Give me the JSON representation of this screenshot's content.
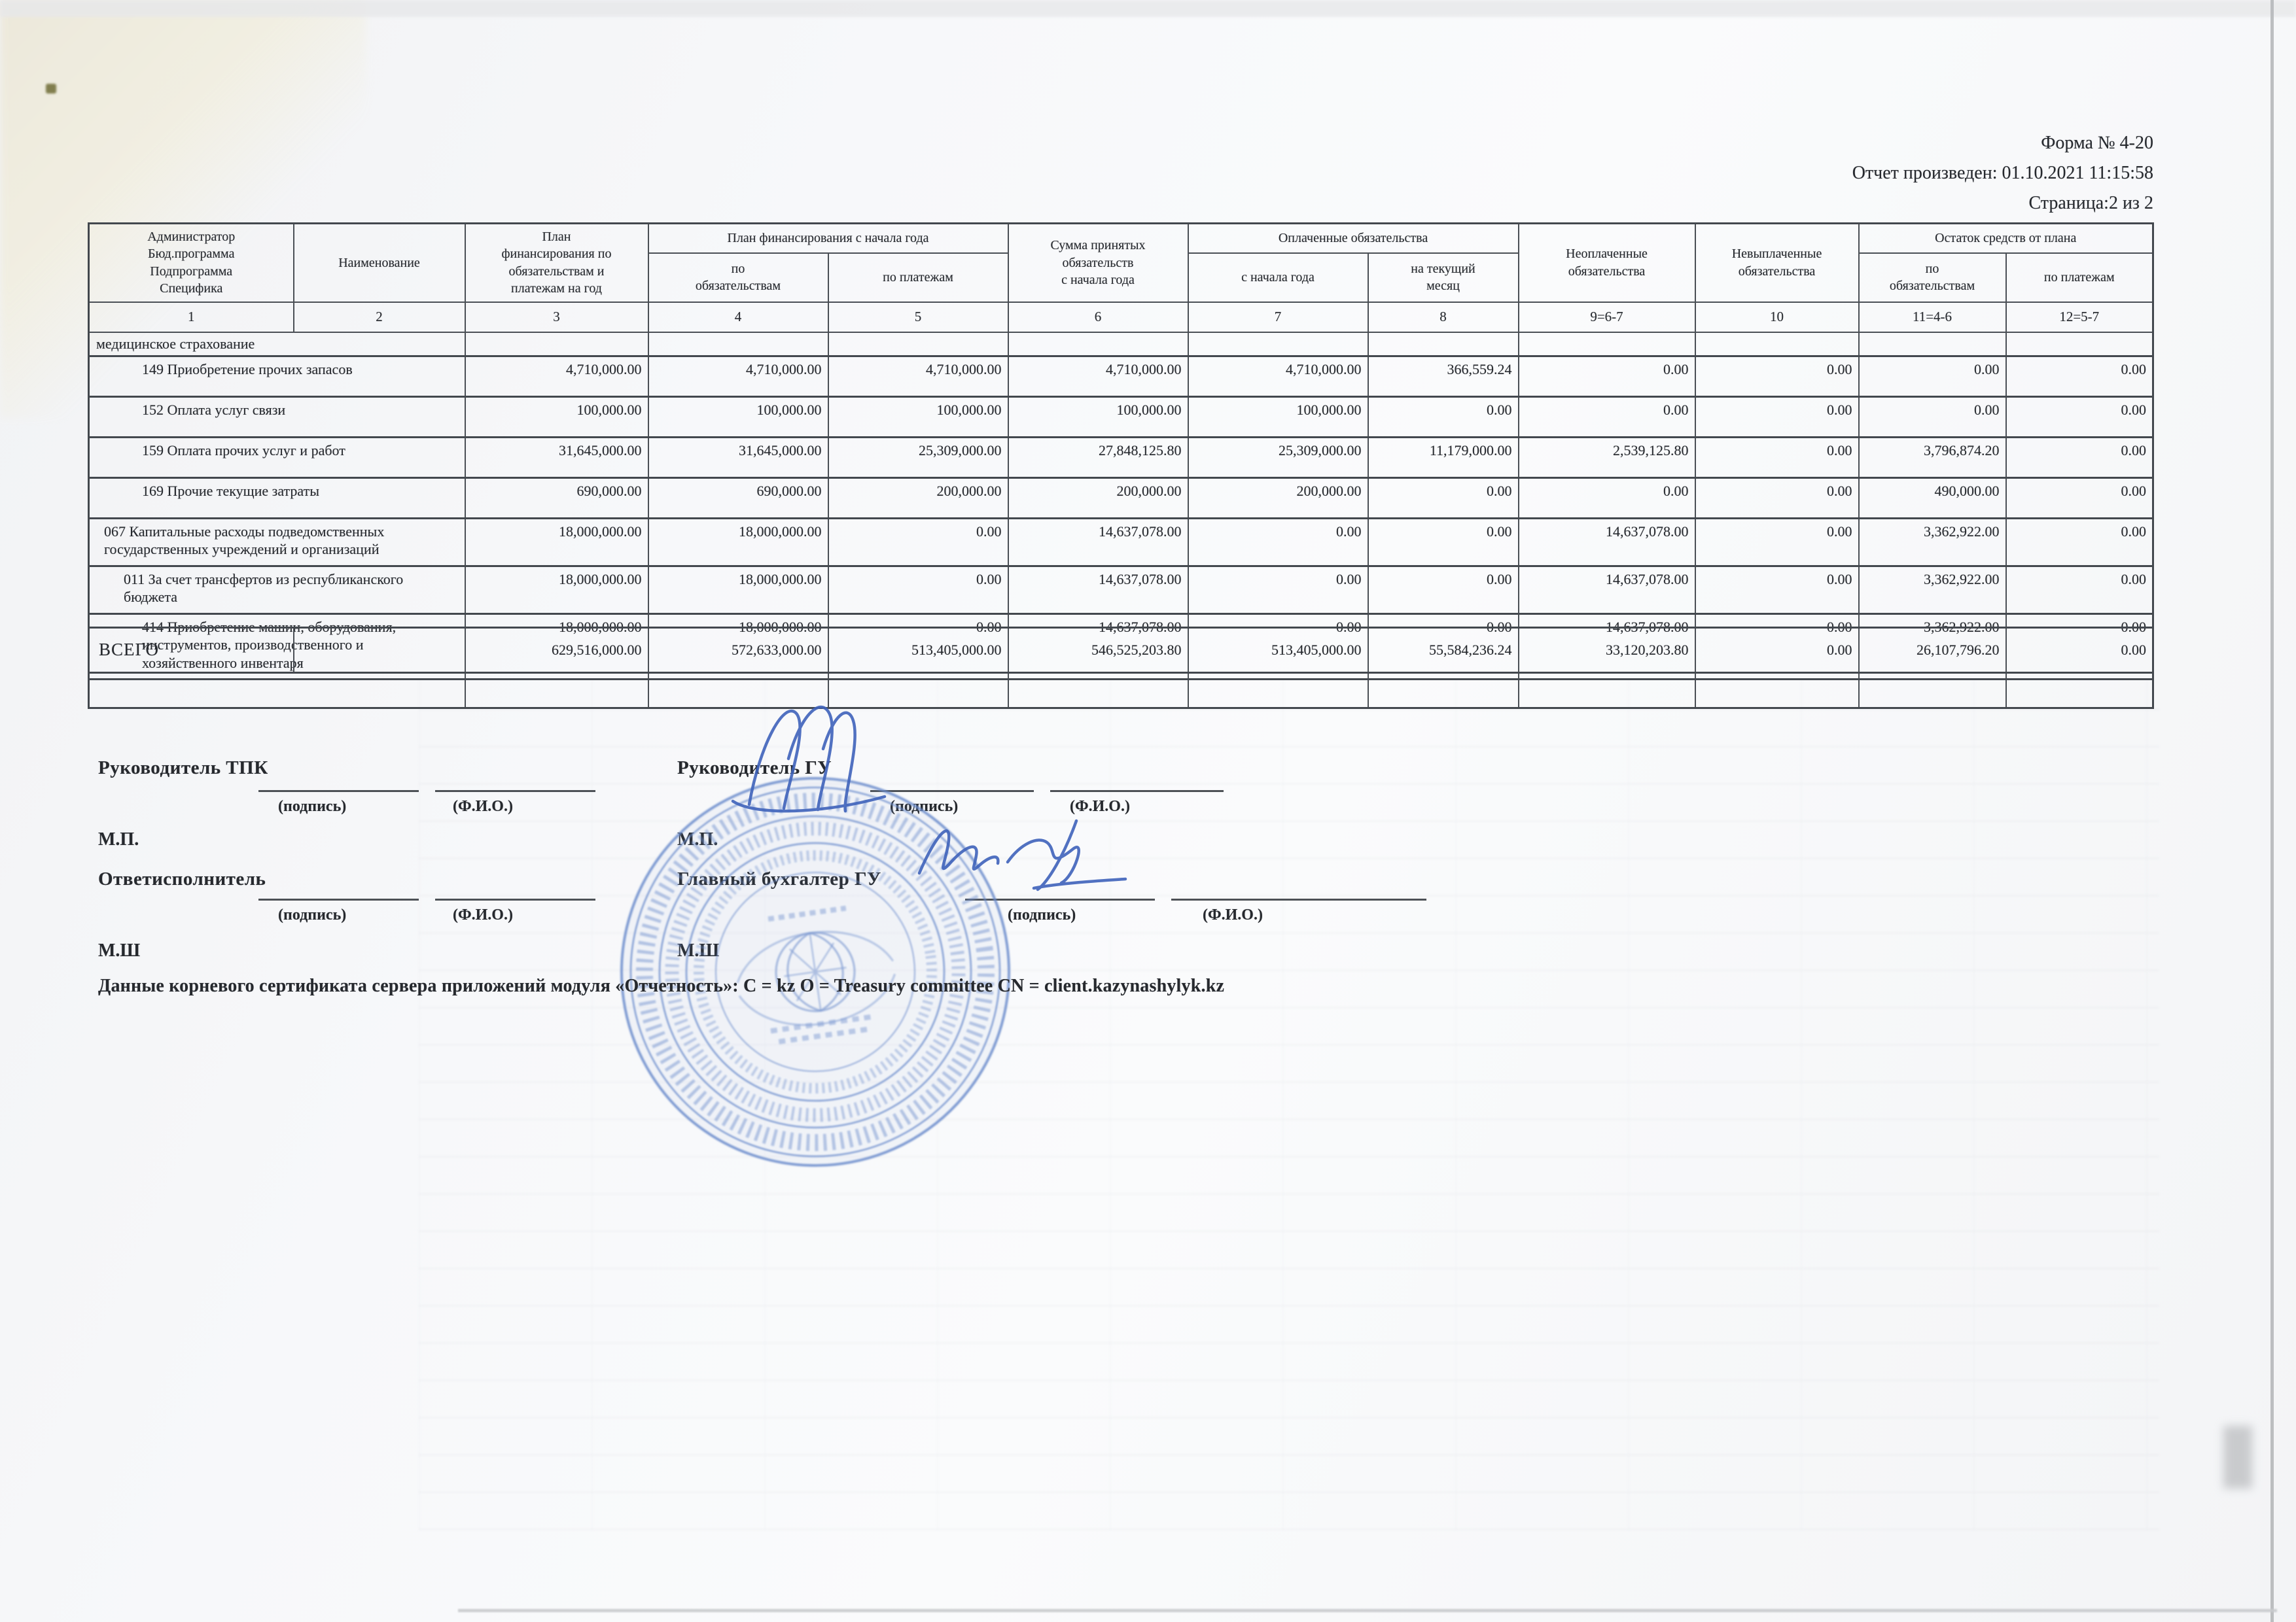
{
  "doc_header": {
    "form": "Форма № 4-20",
    "generated": "Отчет произведен: 01.10.2021 11:15:58",
    "page": "Страница:2 из 2"
  },
  "table": {
    "headers": {
      "col1": "Администратор\nБюд.программа\nПодпрограмма\nСпецифика",
      "col2": "Наименование",
      "col3": "План\nфинансирования по\nобязательствам и\nплатежам на год",
      "group_plan": "План финансирования с начала года",
      "col4": "по\nобязательствам",
      "col5": "по платежам",
      "col6": "Сумма принятых\nобязательств\nс начала года",
      "group_paid": "Оплаченные обязательства",
      "col7": "с начала года",
      "col8": "на текущий\nмесяц",
      "col9": "Неоплаченные\nобязательства",
      "col10": "Невыплаченные\nобязательства",
      "group_rest": "Остаток средств от плана",
      "col11": "по\nобязательствам",
      "col12": "по платежам"
    },
    "col_numbers": [
      "1",
      "2",
      "3",
      "4",
      "5",
      "6",
      "7",
      "8",
      "9=6-7",
      "10",
      "11=4-6",
      "12=5-7"
    ],
    "rows": [
      {
        "label": "медицинское страхование",
        "indent": 0,
        "section": true,
        "values": [
          "",
          "",
          "",
          "",
          "",
          "",
          "",
          "",
          "",
          ""
        ]
      },
      {
        "label": "149  Приобретение прочих запасов",
        "indent": 3,
        "values": [
          "4,710,000.00",
          "4,710,000.00",
          "4,710,000.00",
          "4,710,000.00",
          "4,710,000.00",
          "366,559.24",
          "0.00",
          "0.00",
          "0.00",
          "0.00"
        ]
      },
      {
        "label": "152  Оплата услуг связи",
        "indent": 3,
        "values": [
          "100,000.00",
          "100,000.00",
          "100,000.00",
          "100,000.00",
          "100,000.00",
          "0.00",
          "0.00",
          "0.00",
          "0.00",
          "0.00"
        ]
      },
      {
        "label": "159  Оплата прочих услуг и работ",
        "indent": 3,
        "values": [
          "31,645,000.00",
          "31,645,000.00",
          "25,309,000.00",
          "27,848,125.80",
          "25,309,000.00",
          "11,179,000.00",
          "2,539,125.80",
          "0.00",
          "3,796,874.20",
          "0.00"
        ]
      },
      {
        "label": "169  Прочие текущие затраты",
        "indent": 3,
        "values": [
          "690,000.00",
          "690,000.00",
          "200,000.00",
          "200,000.00",
          "200,000.00",
          "0.00",
          "0.00",
          "0.00",
          "490,000.00",
          "0.00"
        ]
      },
      {
        "label": "067  Капитальные расходы подведомственных государственных учреждений и организаций",
        "indent": 1,
        "values": [
          "18,000,000.00",
          "18,000,000.00",
          "0.00",
          "14,637,078.00",
          "0.00",
          "0.00",
          "14,637,078.00",
          "0.00",
          "3,362,922.00",
          "0.00"
        ]
      },
      {
        "label": "011  За счет трансфертов из республиканского бюджета",
        "indent": 2,
        "values": [
          "18,000,000.00",
          "18,000,000.00",
          "0.00",
          "14,637,078.00",
          "0.00",
          "0.00",
          "14,637,078.00",
          "0.00",
          "3,362,922.00",
          "0.00"
        ]
      },
      {
        "label": "414  Приобретение машин, оборудования, инструментов, производственного и хозяйственного инвентаря",
        "indent": 3,
        "values": [
          "18,000,000.00",
          "18,000,000.00",
          "0.00",
          "14,637,078.00",
          "0.00",
          "0.00",
          "14,637,078.00",
          "0.00",
          "3,362,922.00",
          "0.00"
        ]
      },
      {
        "label": "",
        "indent": 0,
        "spacer": true,
        "values": [
          "",
          "",
          "",
          "",
          "",
          "",
          "",
          "",
          "",
          ""
        ]
      }
    ]
  },
  "total_row": {
    "label": "ВСЕГО",
    "values": [
      "629,516,000.00",
      "572,633,000.00",
      "513,405,000.00",
      "546,525,203.80",
      "513,405,000.00",
      "55,584,236.24",
      "33,120,203.80",
      "0.00",
      "26,107,796.20",
      "0.00"
    ]
  },
  "signatures": {
    "left": {
      "role1": "Руководитель ТПК",
      "role2": "Ответисполнитель",
      "sign_caption": "(подпись)",
      "name_caption": "(Ф.И.О.)",
      "seal1": "М.П.",
      "seal2": "М.Ш"
    },
    "right": {
      "role1": "Руководитель ГУ",
      "role2": "Главный бухгалтер ГУ",
      "sign_caption": "(подпись)",
      "name_caption": "(Ф.И.О.)",
      "seal1": "М.П.",
      "seal2": "М.Ш"
    }
  },
  "footer": {
    "certificate": "Данные корневого сертификата сервера приложений модуля «Отчетность»: C = kz O = Treasury committee CN = client.kazynashylyk.kz"
  },
  "stamp": {
    "color": "#6b8ccc",
    "ink": "#3f63bb"
  }
}
